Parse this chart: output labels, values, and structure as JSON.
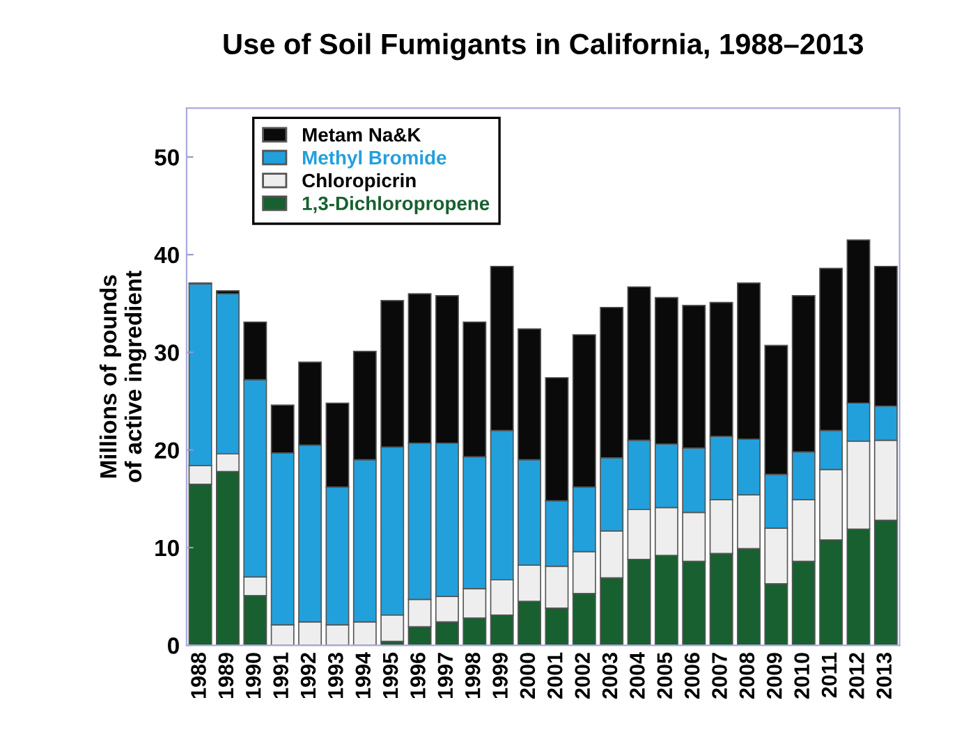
{
  "chart_data": {
    "type": "bar",
    "stacked": true,
    "title": "Use of Soil Fumigants in California, 1988–2013",
    "ylabel": "Millions of pounds\nof active ingredient",
    "categories": [
      "1988",
      "1989",
      "1990",
      "1991",
      "1992",
      "1993",
      "1994",
      "1995",
      "1996",
      "1997",
      "1998",
      "1999",
      "2000",
      "2001",
      "2002",
      "2003",
      "2004",
      "2005",
      "2006",
      "2007",
      "2008",
      "2009",
      "2010",
      "2011",
      "2012",
      "2013"
    ],
    "series": [
      {
        "name": "1,3-Dichloropropene",
        "color": "#186030",
        "values": [
          16.5,
          17.8,
          5.1,
          0,
          0,
          0,
          0,
          0.4,
          1.9,
          2.4,
          2.8,
          3.1,
          4.5,
          3.8,
          5.3,
          6.9,
          8.8,
          9.2,
          8.6,
          9.4,
          9.9,
          6.3,
          8.6,
          10.8,
          11.9,
          12.8
        ]
      },
      {
        "name": "Chloropicrin",
        "color": "#eeeeee",
        "values": [
          1.9,
          1.8,
          1.9,
          2.1,
          2.4,
          2.1,
          2.4,
          2.7,
          2.8,
          2.6,
          3.0,
          3.6,
          3.7,
          4.3,
          4.3,
          4.8,
          5.1,
          4.9,
          5.0,
          5.5,
          5.5,
          5.7,
          6.3,
          7.2,
          9.0,
          8.2
        ]
      },
      {
        "name": "Methyl Bromide",
        "color": "#22a0dc",
        "values": [
          18.6,
          16.4,
          20.2,
          17.6,
          18.1,
          14.1,
          16.6,
          17.2,
          16.0,
          15.7,
          13.5,
          15.3,
          10.8,
          6.7,
          6.6,
          7.5,
          7.1,
          6.5,
          6.6,
          6.5,
          5.7,
          5.5,
          4.9,
          4.0,
          3.9,
          3.5
        ]
      },
      {
        "name": "Metam Na&K",
        "color": "#0a0a0a",
        "values": [
          0.1,
          0.3,
          5.9,
          4.9,
          8.5,
          8.6,
          11.1,
          15.0,
          15.3,
          15.1,
          13.8,
          16.8,
          13.4,
          12.6,
          15.6,
          15.4,
          15.7,
          15.0,
          14.6,
          13.7,
          16.0,
          13.2,
          16.0,
          16.6,
          16.7,
          14.3
        ]
      }
    ],
    "ylim": [
      0,
      55
    ],
    "yticks": [
      0,
      10,
      20,
      30,
      40,
      50
    ],
    "grid": false,
    "legend": "top left"
  }
}
